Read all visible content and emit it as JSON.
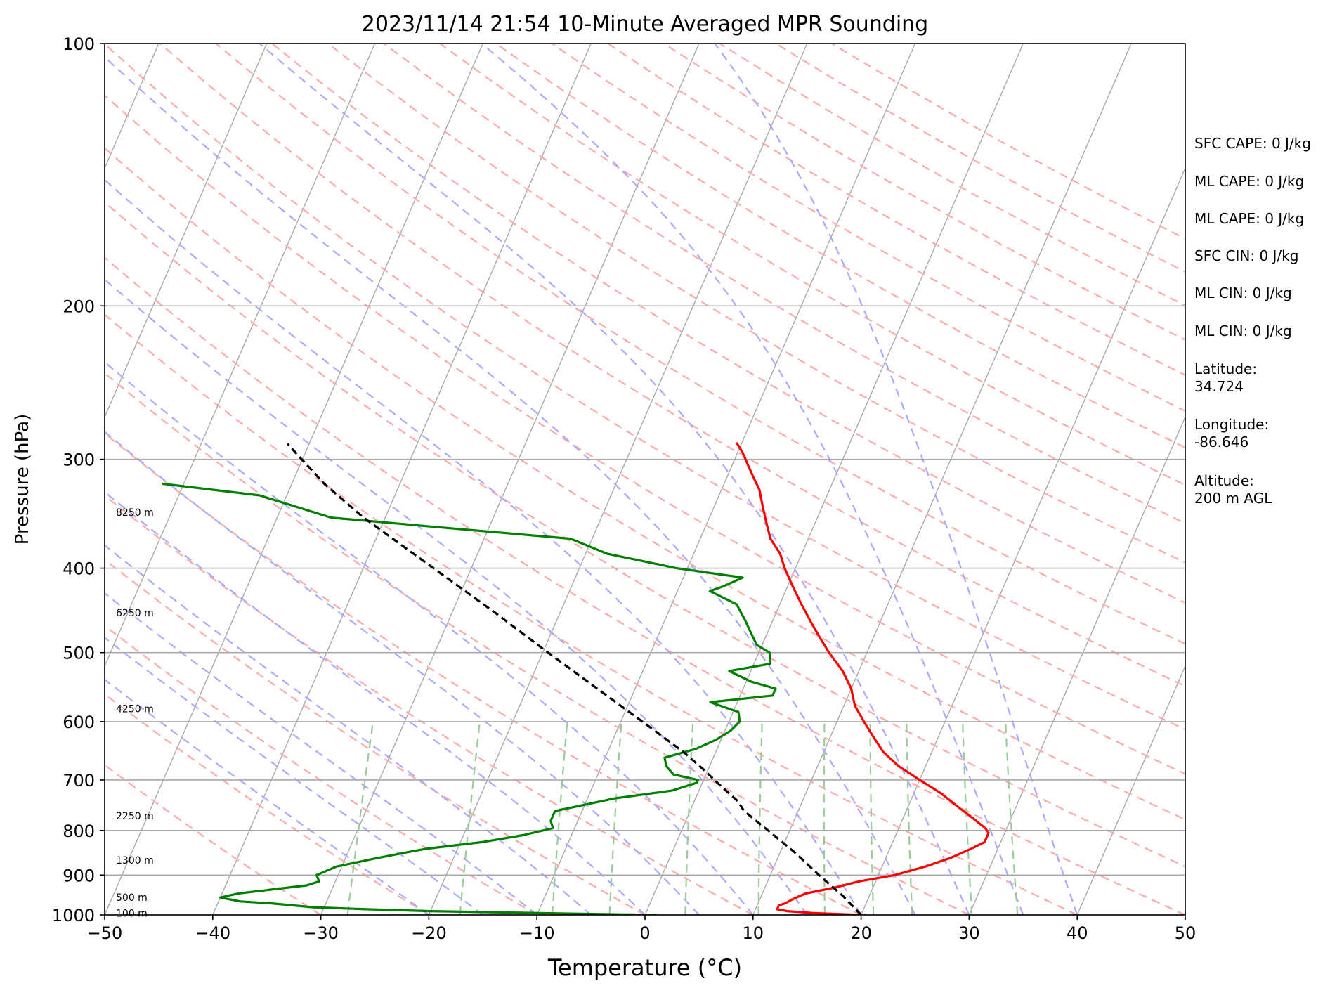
{
  "chart_data": {
    "type": "line",
    "title": "2023/11/14 21:54 10-Minute Averaged MPR Sounding",
    "xlabel": "Temperature (°C)",
    "ylabel": "Pressure (hPa)",
    "xlim": [
      -50,
      50
    ],
    "ylim": [
      1000,
      100
    ],
    "y_scale": "log",
    "grid": true,
    "x_ticks": [
      -50,
      -40,
      -30,
      -20,
      -10,
      0,
      10,
      20,
      30,
      40,
      50
    ],
    "x_tick_labels": [
      "−50",
      "−40",
      "−30",
      "−20",
      "−10",
      "0",
      "10",
      "20",
      "30",
      "40",
      "50"
    ],
    "y_ticks": [
      1000,
      900,
      800,
      700,
      600,
      500,
      400,
      300,
      200,
      100
    ],
    "y_tick_labels": [
      "1000",
      "900",
      "800",
      "700",
      "600",
      "500",
      "400",
      "300",
      "200",
      "100"
    ],
    "skew": "skew-T log-p diagram",
    "series": [
      {
        "name": "",
        "role": "temperature",
        "color": "#ff0000",
        "points": [
          [
            1000,
            20.0
          ],
          [
            995,
            15.5
          ],
          [
            990,
            13.0
          ],
          [
            985,
            12.0
          ],
          [
            980,
            12.0
          ],
          [
            975,
            12.0
          ],
          [
            970,
            12.5
          ],
          [
            960,
            13.0
          ],
          [
            945,
            14.0
          ],
          [
            930,
            16.5
          ],
          [
            915,
            18.5
          ],
          [
            900,
            21.5
          ],
          [
            880,
            24.0
          ],
          [
            860,
            26.0
          ],
          [
            840,
            27.5
          ],
          [
            825,
            28.5
          ],
          [
            815,
            28.5
          ],
          [
            805,
            28.5
          ],
          [
            795,
            28.0
          ],
          [
            775,
            26.5
          ],
          [
            750,
            24.5
          ],
          [
            725,
            22.5
          ],
          [
            700,
            20.0
          ],
          [
            675,
            17.5
          ],
          [
            650,
            15.5
          ],
          [
            625,
            14.0
          ],
          [
            600,
            12.5
          ],
          [
            575,
            11.0
          ],
          [
            550,
            10.0
          ],
          [
            525,
            8.5
          ],
          [
            500,
            6.5
          ],
          [
            480,
            5.0
          ],
          [
            460,
            3.5
          ],
          [
            440,
            2.0
          ],
          [
            420,
            0.5
          ],
          [
            400,
            -1.0
          ],
          [
            385,
            -2.0
          ],
          [
            370,
            -3.5
          ],
          [
            355,
            -4.5
          ],
          [
            340,
            -5.5
          ],
          [
            325,
            -6.5
          ],
          [
            315,
            -7.5
          ],
          [
            305,
            -8.5
          ],
          [
            295,
            -9.5
          ],
          [
            287,
            -10.5
          ]
        ]
      },
      {
        "name": "",
        "role": "dewpoint",
        "color": "#008000",
        "points": [
          [
            1000,
            1.0
          ],
          [
            995,
            -10.0
          ],
          [
            990,
            -20.0
          ],
          [
            985,
            -26.0
          ],
          [
            980,
            -31.0
          ],
          [
            970,
            -35.0
          ],
          [
            965,
            -38.0
          ],
          [
            955,
            -40.0
          ],
          [
            945,
            -38.5
          ],
          [
            925,
            -32.5
          ],
          [
            915,
            -31.5
          ],
          [
            900,
            -32.0
          ],
          [
            880,
            -30.5
          ],
          [
            860,
            -27.0
          ],
          [
            840,
            -23.0
          ],
          [
            825,
            -18.0
          ],
          [
            810,
            -14.5
          ],
          [
            795,
            -12.0
          ],
          [
            780,
            -12.5
          ],
          [
            760,
            -12.5
          ],
          [
            735,
            -7.5
          ],
          [
            720,
            -2.5
          ],
          [
            705,
            -0.5
          ],
          [
            700,
            -0.5
          ],
          [
            690,
            -3.0
          ],
          [
            675,
            -4.0
          ],
          [
            660,
            -4.5
          ],
          [
            645,
            -2.0
          ],
          [
            630,
            -0.5
          ],
          [
            615,
            0.5
          ],
          [
            600,
            1.0
          ],
          [
            585,
            0.5
          ],
          [
            570,
            -2.5
          ],
          [
            560,
            3.0
          ],
          [
            550,
            3.0
          ],
          [
            540,
            0.5
          ],
          [
            525,
            -2.0
          ],
          [
            515,
            1.5
          ],
          [
            500,
            1.0
          ],
          [
            490,
            -0.5
          ],
          [
            475,
            -1.5
          ],
          [
            460,
            -2.5
          ],
          [
            440,
            -4.0
          ],
          [
            425,
            -7.0
          ],
          [
            420,
            -6.0
          ],
          [
            410,
            -4.5
          ],
          [
            400,
            -11.0
          ],
          [
            385,
            -18.0
          ],
          [
            370,
            -22.0
          ],
          [
            360,
            -33.5
          ],
          [
            350,
            -45.0
          ],
          [
            330,
            -52.5
          ],
          [
            320,
            -62.0
          ]
        ]
      },
      {
        "name": "",
        "role": "parcel",
        "color": "#000000",
        "style": "dashed",
        "points": [
          [
            1000,
            20.0
          ],
          [
            950,
            17.5
          ],
          [
            900,
            14.5
          ],
          [
            850,
            11.5
          ],
          [
            800,
            8.0
          ],
          [
            760,
            5.0
          ],
          [
            740,
            4.0
          ],
          [
            720,
            2.5
          ],
          [
            700,
            1.0
          ],
          [
            680,
            -0.5
          ],
          [
            650,
            -3.0
          ],
          [
            600,
            -8.0
          ],
          [
            550,
            -13.5
          ],
          [
            500,
            -19.5
          ],
          [
            450,
            -26.0
          ],
          [
            400,
            -33.5
          ],
          [
            350,
            -42.0
          ],
          [
            320,
            -47.0
          ],
          [
            288,
            -52.0
          ]
        ]
      }
    ],
    "background_lines": [
      {
        "name": "isotherms",
        "color": "#aaaaaa",
        "style": "solid"
      },
      {
        "name": "dry adiabats",
        "color": "#ffaaaa",
        "style": "dashed"
      },
      {
        "name": "moist adiabats",
        "color": "#aaaaff",
        "style": "dashed"
      },
      {
        "name": "mixing ratio lines",
        "color": "#99cc99",
        "style": "dashed"
      }
    ],
    "height_labels": [
      {
        "pressure": 345,
        "text": "8250 m"
      },
      {
        "pressure": 450,
        "text": "6250 m"
      },
      {
        "pressure": 580,
        "text": "4250 m"
      },
      {
        "pressure": 770,
        "text": "2250 m"
      },
      {
        "pressure": 865,
        "text": "1300 m"
      },
      {
        "pressure": 955,
        "text": "500 m"
      },
      {
        "pressure": 995,
        "text": "100 m"
      }
    ]
  },
  "info_panel": {
    "sfc_cape": "SFC CAPE: 0 J/kg",
    "ml_cape_1": "ML CAPE: 0 J/kg",
    "ml_cape_2": "ML CAPE: 0 J/kg",
    "sfc_cin": "SFC CIN: 0 J/kg",
    "ml_cin_1": "ML CIN: 0 J/kg",
    "ml_cin_2": "ML CIN: 0 J/kg",
    "latitude": "Latitude:\n34.724",
    "longitude": "Longitude:\n-86.646",
    "altitude": "Altitude:\n200 m AGL"
  }
}
